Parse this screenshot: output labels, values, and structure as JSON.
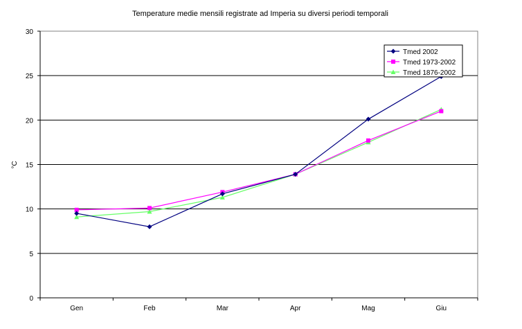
{
  "chart_data": {
    "type": "line",
    "title": "Temperature medie mensili registrate ad Imperia su diversi periodi temporali",
    "xlabel": "",
    "ylabel": "°C",
    "categories": [
      "Gen",
      "Feb",
      "Mar",
      "Apr",
      "Mag",
      "Giu"
    ],
    "ylim": [
      0,
      30
    ],
    "yticks": [
      0,
      5,
      10,
      15,
      20,
      25,
      30
    ],
    "grid": true,
    "legend_position": "top-right",
    "series": [
      {
        "name": "Tmed 2002",
        "values": [
          9.5,
          8.0,
          11.7,
          13.9,
          20.1,
          24.9
        ],
        "color": "#000080",
        "marker": "diamond"
      },
      {
        "name": "Tmed 1973-2002",
        "values": [
          9.9,
          10.1,
          11.9,
          13.9,
          17.7,
          21.0
        ],
        "color": "#ff00ff",
        "marker": "square"
      },
      {
        "name": "Tmed 1876-2002",
        "values": [
          9.1,
          9.7,
          11.3,
          13.9,
          17.5,
          21.2
        ],
        "color": "#66ff66",
        "marker": "triangle"
      }
    ]
  }
}
